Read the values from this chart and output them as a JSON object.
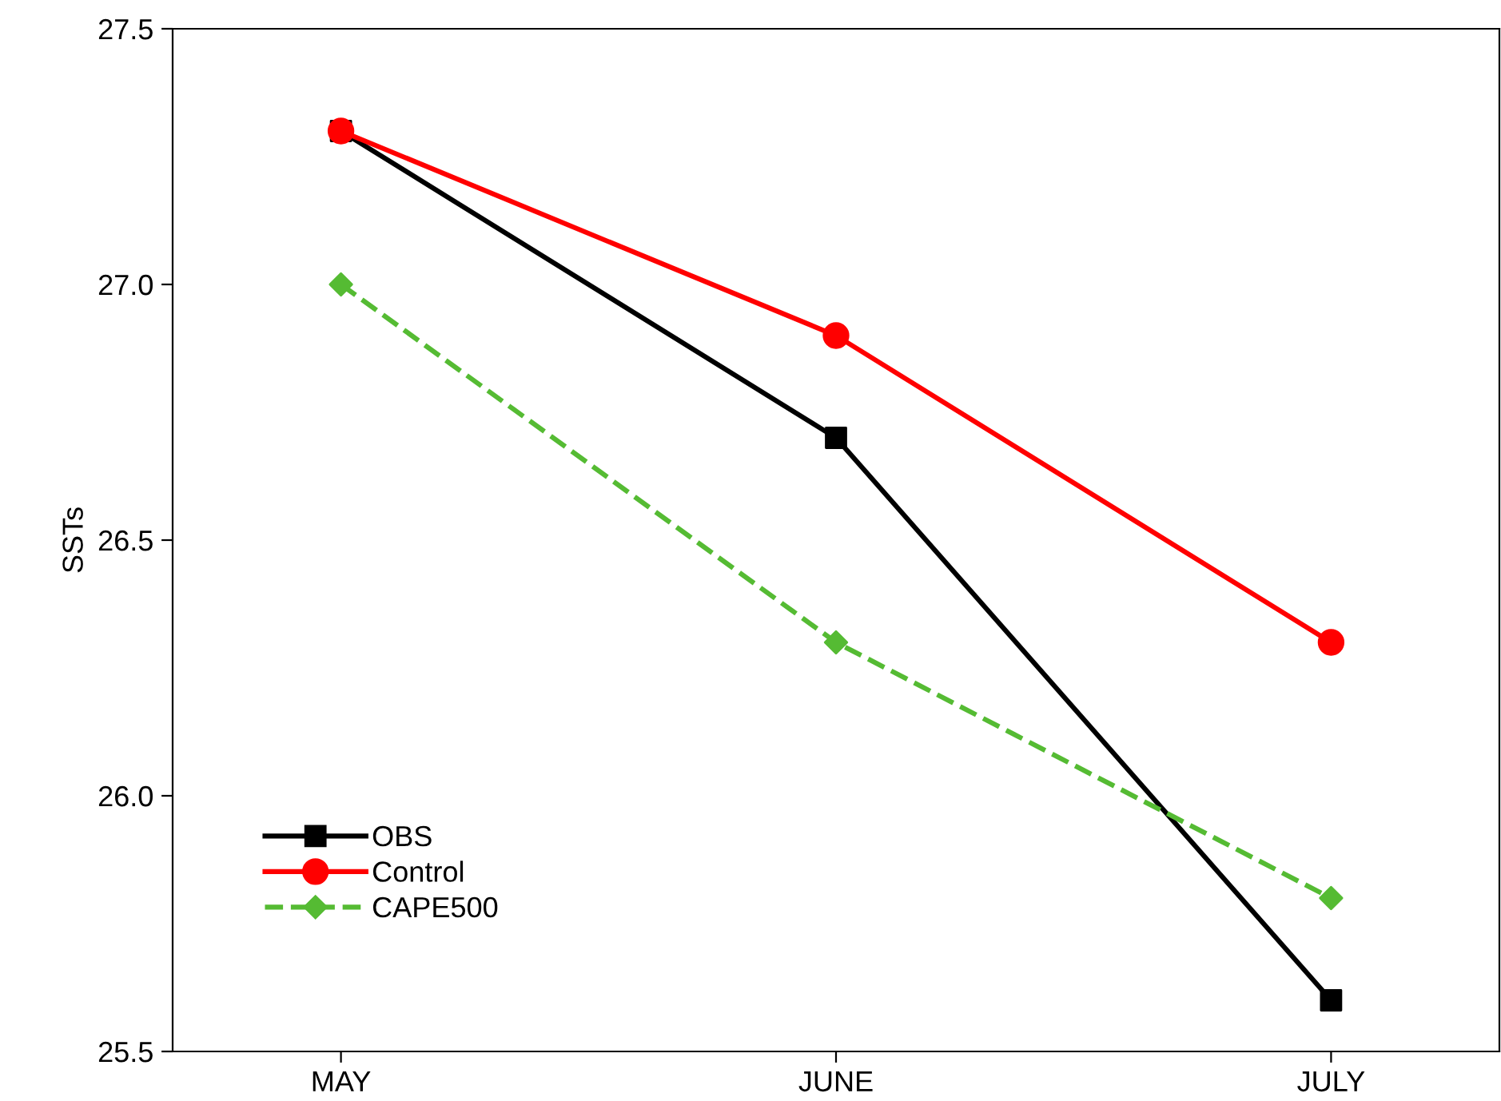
{
  "chart_data": {
    "type": "line",
    "ylabel": "SSTs",
    "categories": [
      "MAY",
      "JUNE",
      "JULY"
    ],
    "series": [
      {
        "name": "OBS",
        "color": "#000000",
        "values": [
          27.3,
          26.7,
          25.6
        ],
        "marker": "square",
        "line_style": "solid"
      },
      {
        "name": "Control",
        "color": "#ff0000",
        "values": [
          27.3,
          26.9,
          26.3
        ],
        "marker": "circle",
        "line_style": "solid"
      },
      {
        "name": "CAPE500",
        "color": "#55bb33",
        "values": [
          27.0,
          26.3,
          25.8
        ],
        "marker": "diamond",
        "line_style": "dashed"
      }
    ],
    "ylim": [
      25.5,
      27.5
    ],
    "yticks": [
      {
        "value": 25.5,
        "label": "25.5"
      },
      {
        "value": 26.0,
        "label": "26.0"
      },
      {
        "value": 26.5,
        "label": "26.5"
      },
      {
        "value": 27.0,
        "label": "27.0"
      },
      {
        "value": 27.5,
        "label": "27.5"
      }
    ],
    "grid": false,
    "legend": "bottom left"
  }
}
